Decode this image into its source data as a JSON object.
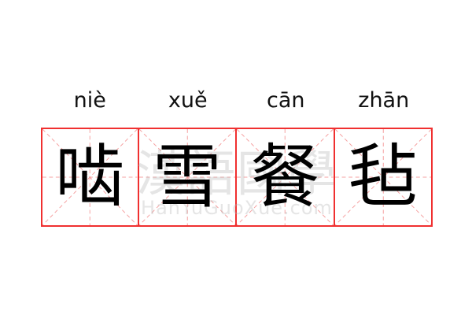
{
  "idiom": [
    {
      "pinyin": "niè",
      "char": "啮"
    },
    {
      "pinyin": "xuě",
      "char": "雪"
    },
    {
      "pinyin": "cān",
      "char": "餐"
    },
    {
      "pinyin": "zhān",
      "char": "毡"
    }
  ],
  "watermark": {
    "chinese": "漢語國學",
    "latin": "HanYuGuoXue.com"
  },
  "colors": {
    "grid_border": "#f03030",
    "grid_guides": "#f5a0a0",
    "text": "#000000"
  }
}
